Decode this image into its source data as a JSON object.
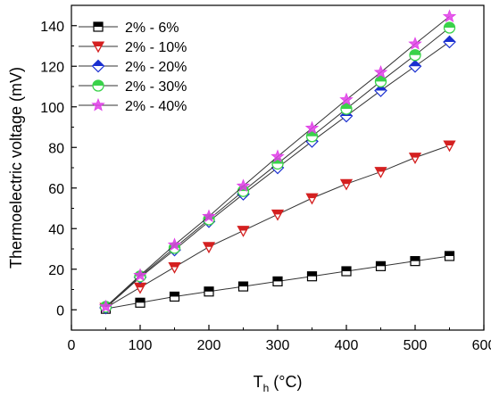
{
  "chart_data": {
    "type": "line",
    "xlabel": "T",
    "xlabel_sub": "h",
    "xlabel_unit": " (°C)",
    "ylabel": "Thermoelectric voltage (mV)",
    "xlim": [
      0,
      600
    ],
    "ylim": [
      -10,
      150
    ],
    "xticks": [
      0,
      100,
      200,
      300,
      400,
      500,
      600
    ],
    "yticks": [
      0,
      20,
      40,
      60,
      80,
      100,
      120,
      140
    ],
    "grid": false,
    "legend_position": "top-left",
    "x": [
      50,
      100,
      150,
      200,
      250,
      300,
      350,
      400,
      450,
      500,
      550
    ],
    "series": [
      {
        "name": "2% - 6%",
        "marker": "square",
        "color": "#000000",
        "values": [
          0.5,
          3.5,
          6.5,
          9,
          11.5,
          14,
          16.5,
          19,
          21.5,
          24,
          26.5
        ]
      },
      {
        "name": "2% - 10%",
        "marker": "triangle-down",
        "color": "#d42020",
        "values": [
          1,
          11,
          21,
          31,
          39,
          47,
          55,
          62,
          68,
          75,
          81
        ]
      },
      {
        "name": "2% - 20%",
        "marker": "diamond",
        "color": "#1a2fd0",
        "values": [
          1,
          16,
          29.5,
          43.5,
          57,
          70,
          83,
          95.5,
          108,
          120,
          132
        ]
      },
      {
        "name": "2% - 30%",
        "marker": "circle-half",
        "color": "#3ad24a",
        "values": [
          1.5,
          16.5,
          30.5,
          44.5,
          58.5,
          72,
          85.5,
          99,
          112.5,
          125.5,
          139
        ]
      },
      {
        "name": "2% - 40%",
        "marker": "star",
        "color": "#e040e8",
        "values": [
          1.5,
          17,
          32,
          46,
          61,
          75.5,
          89.5,
          103.5,
          117,
          131,
          144.5
        ]
      }
    ]
  }
}
